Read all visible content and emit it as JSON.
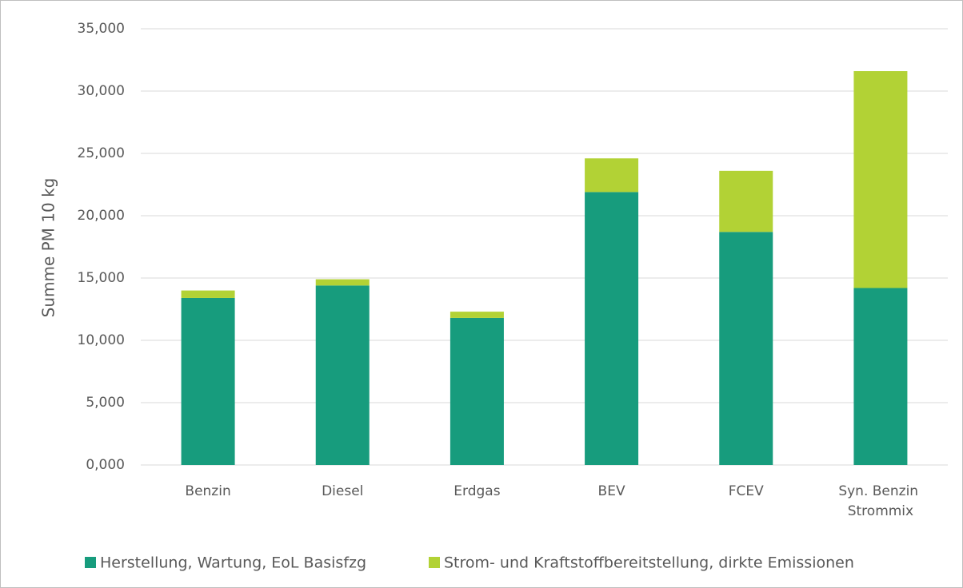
{
  "chart_data": {
    "type": "stacked_bar",
    "y_label": "Summe PM 10 kg",
    "categories": [
      "Benzin",
      "Diesel",
      "Erdgas",
      "BEV",
      "FCEV",
      "Syn. Benzin Strommix"
    ],
    "series": [
      {
        "name": "Herstellung, Wartung, EoL Basisfzg",
        "color": "#179c7d",
        "values": [
          13.4,
          14.4,
          11.8,
          21.9,
          18.7,
          14.2
        ]
      },
      {
        "name": "Strom- und Kraftstoffbereitstellung, dirkte Emissionen",
        "color": "#b2d235",
        "values": [
          0.6,
          0.5,
          0.5,
          2.7,
          4.9,
          17.4
        ]
      }
    ],
    "ylim": [
      0,
      35
    ],
    "yticks": [
      {
        "value": 0,
        "label": "0,000"
      },
      {
        "value": 5,
        "label": "5,000"
      },
      {
        "value": 10,
        "label": "10,000"
      },
      {
        "value": 15,
        "label": "15,000"
      },
      {
        "value": 20,
        "label": "20,000"
      },
      {
        "value": 25,
        "label": "25,000"
      },
      {
        "value": 30,
        "label": "30,000"
      },
      {
        "value": 35,
        "label": "35,000"
      }
    ],
    "grid": true,
    "legend": "bottom"
  }
}
